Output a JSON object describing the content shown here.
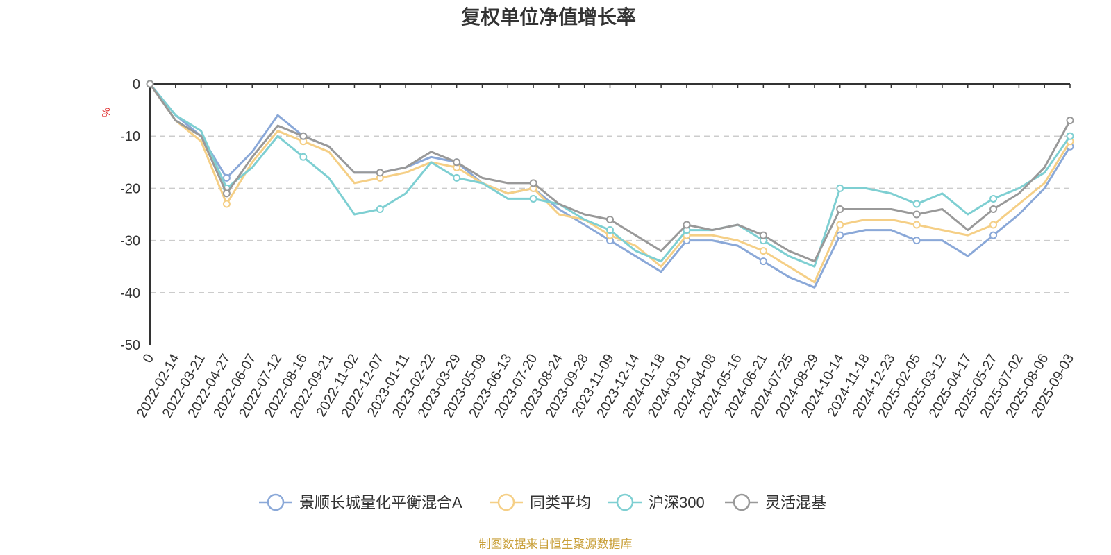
{
  "chart_data": {
    "type": "line",
    "title": "复权单位净值增长率",
    "ylabel": "%",
    "ylim": [
      -50,
      0
    ],
    "yticks": [
      0,
      -10,
      -20,
      -30,
      -40,
      -50
    ],
    "grid": true,
    "legend_position": "bottom",
    "x_start_label": "0",
    "x_tick_labels": [
      "2022-02-14",
      "2022-03-21",
      "2022-04-27",
      "2022-06-07",
      "2022-07-12",
      "2022-08-16",
      "2022-09-21",
      "2022-11-02",
      "2022-12-07",
      "2023-01-11",
      "2023-02-22",
      "2023-03-29",
      "2023-05-09",
      "2023-06-13",
      "2023-07-20",
      "2023-08-24",
      "2023-09-28",
      "2023-11-09",
      "2023-12-14",
      "2024-01-18",
      "2024-03-01",
      "2024-04-08",
      "2024-05-16",
      "2024-06-21",
      "2024-07-25",
      "2024-08-29",
      "2024-10-14",
      "2024-11-18",
      "2024-12-23",
      "2025-02-05",
      "2025-03-12",
      "2025-04-17",
      "2025-05-27",
      "2025-07-02",
      "2025-08-06",
      "2025-09-03"
    ],
    "x": [
      "0",
      "2022-02-14",
      "2022-03-21",
      "2022-04-27",
      "2022-06-07",
      "2022-07-12",
      "2022-08-16",
      "2022-09-21",
      "2022-11-02",
      "2022-12-07",
      "2023-01-11",
      "2023-02-22",
      "2023-03-29",
      "2023-05-09",
      "2023-06-13",
      "2023-07-20",
      "2023-08-24",
      "2023-09-28",
      "2023-11-09",
      "2023-12-14",
      "2024-01-18",
      "2024-03-01",
      "2024-04-08",
      "2024-05-16",
      "2024-06-21",
      "2024-07-25",
      "2024-08-29",
      "2024-10-14",
      "2024-11-18",
      "2024-12-23",
      "2025-02-05",
      "2025-03-12",
      "2025-04-17",
      "2025-05-27",
      "2025-07-02",
      "2025-08-06",
      "2025-09-03"
    ],
    "series": [
      {
        "name": "景顺长城量化平衡混合A",
        "color": "#8aa8d8",
        "values": [
          0,
          -6,
          -10,
          -18,
          -13,
          -6,
          -10,
          -12,
          -17,
          -17,
          -16,
          -14,
          -15,
          -19,
          -21,
          -20,
          -24,
          -27,
          -30,
          -33,
          -36,
          -30,
          -30,
          -31,
          -34,
          -37,
          -39,
          -29,
          -28,
          -28,
          -30,
          -30,
          -33,
          -29,
          -25,
          -20,
          -12
        ]
      },
      {
        "name": "同类平均",
        "color": "#f5cf86",
        "values": [
          0,
          -7,
          -11,
          -23,
          -15,
          -9,
          -11,
          -13,
          -19,
          -18,
          -17,
          -15,
          -16,
          -19,
          -21,
          -20,
          -25,
          -26,
          -29,
          -31,
          -35,
          -29,
          -29,
          -30,
          -32,
          -35,
          -38,
          -27,
          -26,
          -26,
          -27,
          -28,
          -29,
          -27,
          -23,
          -19,
          -11
        ]
      },
      {
        "name": "沪深300",
        "color": "#7ecfd2",
        "values": [
          0,
          -6,
          -9,
          -20,
          -16,
          -10,
          -14,
          -18,
          -25,
          -24,
          -21,
          -15,
          -18,
          -19,
          -22,
          -22,
          -23,
          -26,
          -28,
          -32,
          -34,
          -28,
          -28,
          -27,
          -30,
          -33,
          -35,
          -20,
          -20,
          -21,
          -23,
          -21,
          -25,
          -22,
          -20,
          -17,
          -10
        ]
      },
      {
        "name": "灵活混基",
        "color": "#999999",
        "values": [
          0,
          -7,
          -10,
          -21,
          -14,
          -8,
          -10,
          -12,
          -17,
          -17,
          -16,
          -13,
          -15,
          -18,
          -19,
          -19,
          -23,
          -25,
          -26,
          -29,
          -32,
          -27,
          -28,
          -27,
          -29,
          -32,
          -34,
          -24,
          -24,
          -24,
          -25,
          -24,
          -28,
          -24,
          -21,
          -16,
          -7
        ]
      }
    ]
  },
  "footer": {
    "source": "制图数据来自恒生聚源数据库"
  }
}
